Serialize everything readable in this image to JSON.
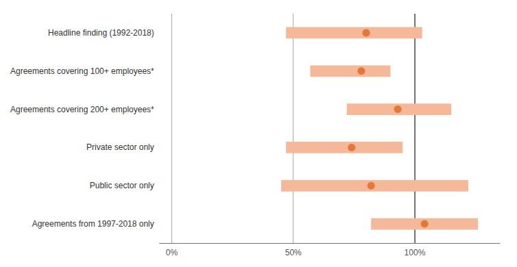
{
  "chart_data": {
    "type": "bar",
    "orientation": "horizontal",
    "categories": [
      "Agreements from 1997-2018 only",
      "Public sector only",
      "Private sector only",
      "Agreements covering 200+ employees*",
      "Agreements covering 100+ employees*",
      "Headline finding (1992-2018)"
    ],
    "series": [
      {
        "type": "bar",
        "color": "#f5b899",
        "ci_low": [
          82,
          45,
          47,
          72,
          57,
          47
        ],
        "ci_high": [
          126,
          122,
          95,
          115,
          90,
          103
        ]
      },
      {
        "type": "scatter",
        "color": "#e06820",
        "values": [
          104,
          82,
          74,
          93,
          78,
          80
        ]
      }
    ],
    "xlim": [
      -5,
      135
    ],
    "xticks": [
      {
        "value": 0,
        "label": "0%"
      },
      {
        "value": 50,
        "label": "50%"
      },
      {
        "value": 100,
        "label": "100%"
      }
    ],
    "reference_line": 100,
    "grid": true
  }
}
